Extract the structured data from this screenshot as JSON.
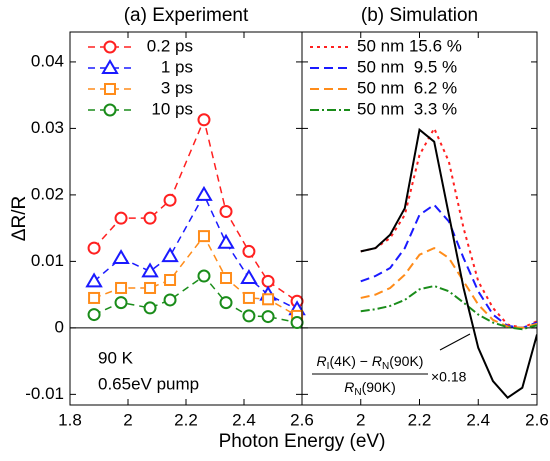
{
  "chart_data": [
    {
      "type": "line",
      "title": "(a) Experiment",
      "ylabel": "ΔR/R",
      "xlabel": "Photon Energy (eV)",
      "x": [
        1.883,
        1.976,
        2.076,
        2.145,
        2.262,
        2.338,
        2.417,
        2.483,
        2.583
      ],
      "series": [
        {
          "name": "0.2 ps",
          "color": "#ff2020",
          "marker": "circle",
          "values": [
            0.012,
            0.0165,
            0.0165,
            0.0192,
            0.0313,
            0.0175,
            0.0115,
            0.007,
            0.004
          ]
        },
        {
          "name": "1 ps",
          "color": "#1a1aff",
          "marker": "triangle",
          "values": [
            0.007,
            0.0105,
            0.0085,
            0.0108,
            0.02,
            0.0128,
            0.0075,
            0.005,
            0.0028
          ]
        },
        {
          "name": "3 ps",
          "color": "#ff8c1a",
          "marker": "square",
          "values": [
            0.0045,
            0.006,
            0.006,
            0.0072,
            0.0138,
            0.0075,
            0.0045,
            0.0043,
            0.0018
          ]
        },
        {
          "name": "10 ps",
          "color": "#1a8c1a",
          "marker": "circle",
          "values": [
            0.002,
            0.0038,
            0.003,
            0.0042,
            0.0078,
            0.0038,
            0.0018,
            0.0017,
            0.0008
          ]
        }
      ],
      "xlim": [
        1.8,
        2.6
      ],
      "xticks": [
        1.8,
        2,
        2.2,
        2.4,
        2.6
      ],
      "ylim": [
        -0.0116,
        0.0445
      ],
      "yticks": [
        -0.01,
        0,
        0.01,
        0.02,
        0.03,
        0.04
      ],
      "annotations": [
        "90 K",
        "0.65eV pump"
      ]
    },
    {
      "type": "line",
      "title": "(b) Simulation",
      "x": [
        2.0,
        2.05,
        2.1,
        2.15,
        2.2,
        2.25,
        2.3,
        2.35,
        2.4,
        2.45,
        2.5,
        2.55,
        2.6
      ],
      "series": [
        {
          "name": "50 nm 15.6 %",
          "color": "#ff2020",
          "dash": "3,4",
          "values": [
            0.0115,
            0.012,
            0.0135,
            0.017,
            0.026,
            0.03,
            0.025,
            0.015,
            0.007,
            0.003,
            0.0005,
            0,
            0.001
          ]
        },
        {
          "name": "50 nm  9.5 %",
          "color": "#1a1aff",
          "dash": "9,5",
          "values": [
            0.007,
            0.0078,
            0.009,
            0.012,
            0.017,
            0.0185,
            0.016,
            0.0105,
            0.0055,
            0.002,
            0.0003,
            0,
            0.0008
          ]
        },
        {
          "name": "50 nm  6.2 %",
          "color": "#ff8c1a",
          "dash": "9,5",
          "values": [
            0.0045,
            0.005,
            0.006,
            0.008,
            0.011,
            0.012,
            0.0105,
            0.007,
            0.0035,
            0.0012,
            0.0002,
            0,
            0.0006
          ]
        },
        {
          "name": "50 nm  3.3 %",
          "color": "#1a8c1a",
          "dash": "9,3,2,3",
          "values": [
            0.0025,
            0.0028,
            0.0033,
            0.0042,
            0.0058,
            0.0063,
            0.0055,
            0.0038,
            0.002,
            0.0008,
            0.0001,
            -0.0002,
            0.0004
          ]
        },
        {
          "color": "#000000",
          "values": [
            0.0115,
            0.012,
            0.014,
            0.018,
            0.0298,
            0.028,
            0.017,
            0.006,
            -0.003,
            -0.008,
            -0.0105,
            -0.009,
            -0.001
          ]
        }
      ],
      "xlim": [
        1.8,
        2.6
      ],
      "xticks": [
        2,
        2.2,
        2.4,
        2.6
      ],
      "ylim": [
        -0.0116,
        0.0445
      ],
      "yticks": [
        -0.01,
        0,
        0.01,
        0.02,
        0.03,
        0.04
      ],
      "formula": {
        "num": [
          "R",
          "I",
          "(4K) − ",
          "R",
          "N",
          "(90K)"
        ],
        "den": [
          "R",
          "N",
          "(90K)"
        ],
        "factor": "×0.18"
      }
    }
  ]
}
